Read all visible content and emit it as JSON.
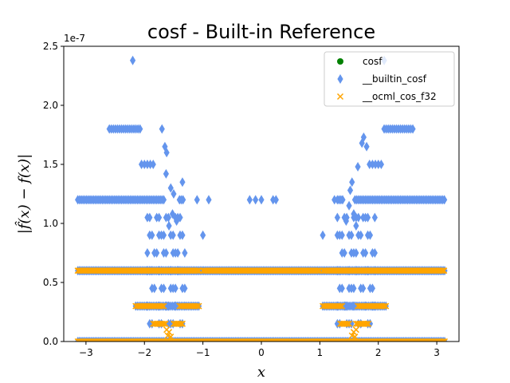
{
  "chart_data": {
    "type": "scatter",
    "title": "cosf - Built-in Reference",
    "xlabel": "x",
    "ylabel": "|f̂(x) − f(x)|",
    "y_offset_text": "1e-7",
    "xlim": [
      -3.38,
      3.38
    ],
    "ylim": [
      0,
      2.5e-07
    ],
    "x_ticks": [
      -3,
      -2,
      -1,
      0,
      1,
      2,
      3
    ],
    "x_tick_labels": [
      "−3",
      "−2",
      "−1",
      "0",
      "1",
      "2",
      "3"
    ],
    "y_ticks": [
      0,
      5e-08,
      1e-07,
      1.5e-07,
      2e-07,
      2.5e-07
    ],
    "y_tick_labels": [
      "0.0",
      "0.5",
      "1.0",
      "1.5",
      "2.0",
      "2.5"
    ],
    "legend_position": "upper right",
    "series": [
      {
        "name": "cosf",
        "marker": "circle",
        "color": "#008000",
        "points": []
      },
      {
        "name": "__builtin_cosf",
        "marker": "thin_diamond",
        "color": "#6495ED",
        "bands": [
          {
            "y": 0,
            "x_ranges": [
              [
                -3.14,
                3.14
              ]
            ],
            "step": 0.025
          },
          {
            "y": 3e-08,
            "x_ranges": [
              [
                -2.15,
                -1.05
              ],
              [
                1.05,
                2.15
              ]
            ],
            "step": 0.03
          },
          {
            "y": 6e-08,
            "x_ranges": [
              [
                -3.14,
                3.14
              ]
            ],
            "step": 0.025
          },
          {
            "y": 1.2e-07,
            "x_ranges": [
              [
                -3.14,
                -1.65
              ],
              [
                -1.4,
                -1.33
              ],
              [
                1.3,
                1.4
              ],
              [
                1.6,
                3.14
              ]
            ],
            "step": 0.03
          },
          {
            "y": 1.8e-07,
            "x_ranges": [
              [
                -2.6,
                -2.05
              ],
              [
                2.1,
                2.6
              ]
            ],
            "step": 0.035
          }
        ],
        "columns": [
          {
            "x_range": [
              -1.95,
              -1.3
            ],
            "values": [
              1.5e-08,
              3e-08,
              4.5e-08,
              6e-08,
              7.5e-08,
              9e-08,
              1.05e-07
            ],
            "step": 0.04
          },
          {
            "x_range": [
              1.3,
              1.95
            ],
            "values": [
              1.5e-08,
              3e-08,
              4.5e-08,
              6e-08,
              7.5e-08,
              9e-08,
              1.05e-07
            ],
            "step": 0.04
          }
        ],
        "scatter": [
          [
            -2.2,
            2.38e-07
          ],
          [
            2.1,
            2.38e-07
          ],
          [
            -2.0,
            1.5e-07
          ],
          [
            -1.95,
            1.5e-07
          ],
          [
            -1.9,
            1.5e-07
          ],
          [
            -2.05,
            1.5e-07
          ],
          [
            -1.85,
            1.5e-07
          ],
          [
            1.85,
            1.5e-07
          ],
          [
            1.9,
            1.5e-07
          ],
          [
            1.95,
            1.5e-07
          ],
          [
            2.0,
            1.5e-07
          ],
          [
            2.05,
            1.5e-07
          ],
          [
            -1.7,
            1.8e-07
          ],
          [
            1.75,
            1.73e-07
          ],
          [
            1.8,
            1.65e-07
          ],
          [
            -1.65,
            1.65e-07
          ],
          [
            -1.62,
            1.6e-07
          ],
          [
            1.72,
            1.68e-07
          ],
          [
            1.55,
            1.35e-07
          ],
          [
            -1.35,
            1.35e-07
          ],
          [
            -1.63,
            1.42e-07
          ],
          [
            1.65,
            1.48e-07
          ],
          [
            -1.0,
            9e-08
          ],
          [
            1.05,
            9e-08
          ],
          [
            -0.9,
            1.2e-07
          ],
          [
            -1.1,
            1.2e-07
          ],
          [
            -0.2,
            1.2e-07
          ],
          [
            -0.1,
            1.2e-07
          ],
          [
            0.0,
            1.2e-07
          ],
          [
            0.2,
            1.2e-07
          ],
          [
            0.25,
            1.2e-07
          ],
          [
            1.25,
            1.2e-07
          ],
          [
            -1.55,
            1.3e-07
          ],
          [
            -1.5,
            1.25e-07
          ],
          [
            1.52,
            1.28e-07
          ],
          [
            1.5,
            1.15e-07
          ],
          [
            1.58,
            1.08e-07
          ],
          [
            -1.52,
            1.08e-07
          ],
          [
            -1.45,
            1.02e-07
          ],
          [
            1.45,
            1.02e-07
          ],
          [
            -1.58,
            9.8e-08
          ],
          [
            1.62,
            9.8e-08
          ]
        ]
      },
      {
        "name": "__ocml_cos_f32",
        "marker": "x",
        "color": "#FFA500",
        "bands": [
          {
            "y": 0,
            "x_ranges": [
              [
                -3.14,
                3.14
              ]
            ],
            "step": 0.025
          },
          {
            "y": 6e-08,
            "x_ranges": [
              [
                -3.14,
                -1.05
              ],
              [
                -1.0,
                1.0
              ],
              [
                1.05,
                3.14
              ]
            ],
            "step": 0.025
          },
          {
            "y": 3e-08,
            "x_ranges": [
              [
                -2.15,
                -1.65
              ],
              [
                -1.4,
                -1.05
              ],
              [
                1.05,
                1.4
              ],
              [
                1.65,
                2.15
              ]
            ],
            "step": 0.03
          },
          {
            "y": 1.5e-08,
            "x_ranges": [
              [
                -1.85,
                -1.62
              ],
              [
                -1.5,
                -1.35
              ],
              [
                1.35,
                1.5
              ],
              [
                1.62,
                1.85
              ]
            ],
            "step": 0.03
          }
        ],
        "scatter": [
          [
            -1.6,
            5e-09
          ],
          [
            -1.58,
            8e-09
          ],
          [
            -1.55,
            4e-09
          ],
          [
            1.55,
            5e-09
          ],
          [
            1.58,
            8e-09
          ],
          [
            1.6,
            4e-09
          ],
          [
            -1.62,
            1e-08
          ],
          [
            1.62,
            1e-08
          ]
        ]
      }
    ]
  }
}
